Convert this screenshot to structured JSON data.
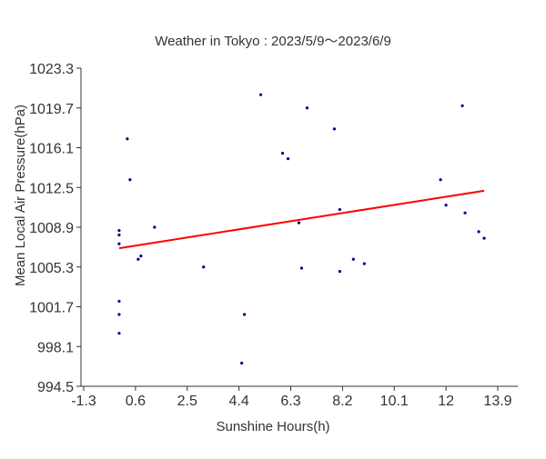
{
  "chart_data": {
    "type": "scatter",
    "title": "Weather in Tokyo : 2023/5/9～2023/6/9",
    "xlabel": "Sunshine Hours(h)",
    "ylabel": "Mean Local Air Pressure(hPa)",
    "xlim": [
      -1.3,
      15.0
    ],
    "ylim": [
      994.5,
      1023.3
    ],
    "xticks": [
      -1.3,
      0.6,
      2.5,
      4.4,
      6.3,
      8.2,
      10.1,
      12,
      13.9
    ],
    "xtick_labels": [
      "-1.3",
      "0.6",
      "2.5",
      "4.4",
      "6.3",
      "8.2",
      "10.1",
      "12",
      "13.9"
    ],
    "yticks": [
      994.5,
      998.1,
      1001.7,
      1005.3,
      1008.9,
      1012.5,
      1016.1,
      1019.7,
      1023.3
    ],
    "ytick_labels": [
      "994.5",
      "998.1",
      "1001.7",
      "1005.3",
      "1008.9",
      "1012.5",
      "1016.1",
      "1019.7",
      "1023.3"
    ],
    "grid": false,
    "point_color": "#00008b",
    "trend_color": "#ff0000",
    "points": [
      {
        "x": 0.0,
        "y": 1008.6
      },
      {
        "x": 0.0,
        "y": 1008.2
      },
      {
        "x": 0.0,
        "y": 1007.4
      },
      {
        "x": 0.0,
        "y": 1002.2
      },
      {
        "x": 0.0,
        "y": 1001.0
      },
      {
        "x": 0.0,
        "y": 999.3
      },
      {
        "x": 0.3,
        "y": 1016.9
      },
      {
        "x": 0.4,
        "y": 1013.2
      },
      {
        "x": 0.7,
        "y": 1006.0
      },
      {
        "x": 0.8,
        "y": 1006.3
      },
      {
        "x": 1.3,
        "y": 1008.9
      },
      {
        "x": 3.1,
        "y": 1005.3
      },
      {
        "x": 4.5,
        "y": 996.6
      },
      {
        "x": 4.6,
        "y": 1001.0
      },
      {
        "x": 5.2,
        "y": 1020.9
      },
      {
        "x": 6.0,
        "y": 1015.6
      },
      {
        "x": 6.2,
        "y": 1015.1
      },
      {
        "x": 6.6,
        "y": 1009.3
      },
      {
        "x": 6.7,
        "y": 1005.2
      },
      {
        "x": 6.9,
        "y": 1019.7
      },
      {
        "x": 7.9,
        "y": 1017.8
      },
      {
        "x": 8.1,
        "y": 1004.9
      },
      {
        "x": 8.1,
        "y": 1010.5
      },
      {
        "x": 8.6,
        "y": 1006.0
      },
      {
        "x": 9.0,
        "y": 1005.6
      },
      {
        "x": 11.8,
        "y": 1013.2
      },
      {
        "x": 12.0,
        "y": 1010.9
      },
      {
        "x": 12.6,
        "y": 1019.9
      },
      {
        "x": 12.7,
        "y": 1010.2
      },
      {
        "x": 13.2,
        "y": 1008.5
      },
      {
        "x": 13.4,
        "y": 1007.9
      }
    ],
    "trendline": {
      "x": [
        0.0,
        13.4
      ],
      "y": [
        1007.0,
        1012.2
      ]
    }
  }
}
